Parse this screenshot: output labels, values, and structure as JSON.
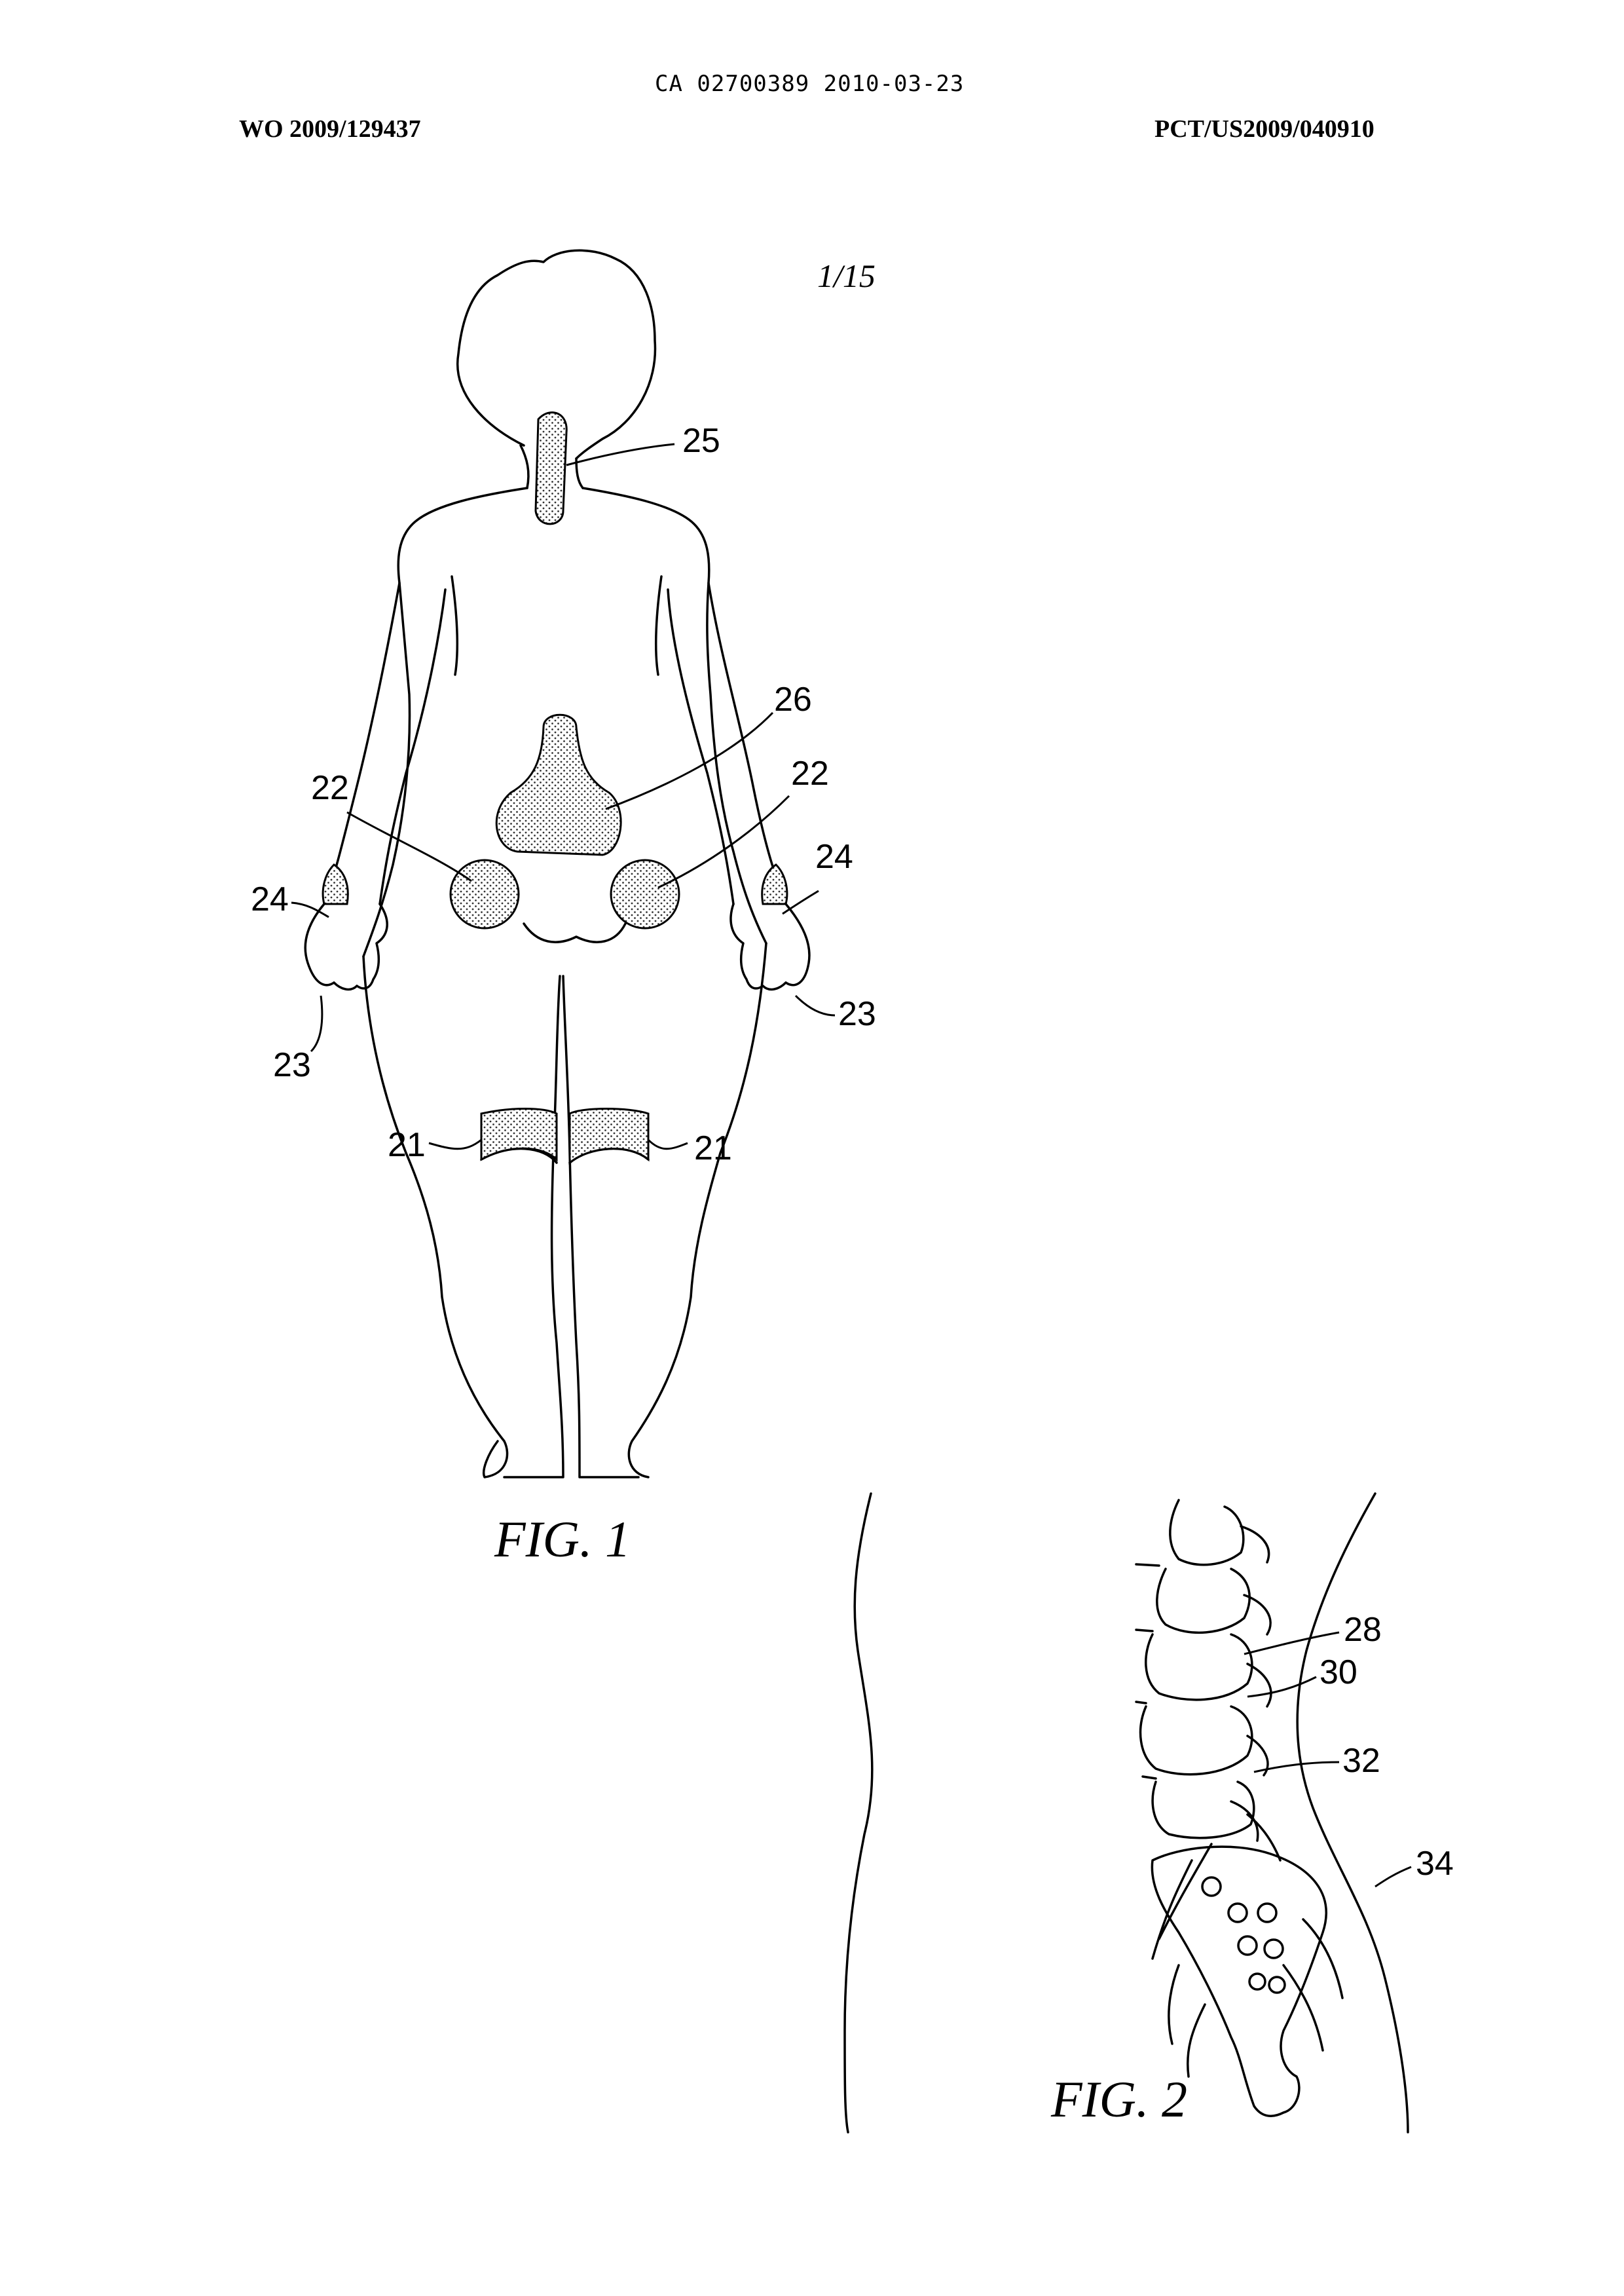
{
  "header": {
    "ca_number": "CA 02700389 2010-03-23",
    "wo_number": "WO 2009/129437",
    "pct_number": "PCT/US2009/040910"
  },
  "sheet_number": "1/15",
  "figures": [
    {
      "caption": "FIG. 1",
      "reference_numerals": {
        "neck_region": "25",
        "lower_back_region": "26",
        "hip_left": "22",
        "hip_right": "22",
        "wrist_left": "24",
        "wrist_right": "24",
        "hand_left": "23",
        "hand_right": "23",
        "knee_left": "21",
        "knee_right": "21"
      }
    },
    {
      "caption": "FIG. 2",
      "reference_numerals": {
        "vertebra": "28",
        "disc": "30",
        "nerve": "32",
        "skin_outline": "34"
      }
    }
  ]
}
